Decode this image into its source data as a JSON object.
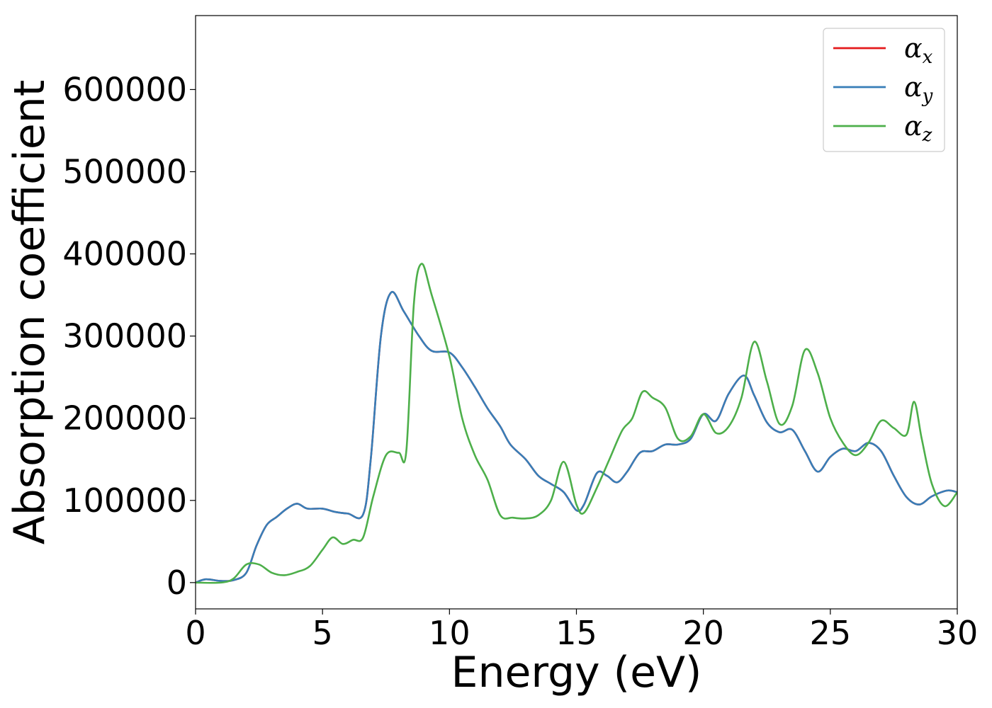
{
  "chart_data": {
    "type": "line",
    "xlabel": "Energy (eV)",
    "ylabel": "Absorption coefficient",
    "xlim": [
      0,
      30
    ],
    "ylim": [
      -32000,
      690000
    ],
    "xticks": [
      0,
      5,
      10,
      15,
      20,
      25,
      30
    ],
    "yticks": [
      0,
      100000,
      200000,
      300000,
      400000,
      500000,
      600000
    ],
    "grid": false,
    "legend_position": "top-right",
    "series": [
      {
        "name": "α_x",
        "label_main": "α",
        "label_sub": "x",
        "color": "#e41a1c",
        "x": [
          0,
          0.4,
          1.0,
          1.5,
          2.0,
          2.4,
          2.8,
          3.2,
          3.6,
          4.0,
          4.4,
          5.0,
          5.5,
          6.0,
          6.6,
          6.9,
          7.3,
          7.7,
          8.2,
          8.8,
          9.3,
          10.0,
          10.5,
          11.0,
          11.5,
          12.0,
          12.4,
          13.0,
          13.5,
          14.0,
          14.5,
          15.0,
          15.3,
          15.8,
          16.2,
          16.6,
          17.0,
          17.5,
          18.0,
          18.5,
          19.0,
          19.5,
          20.0,
          20.5,
          21.0,
          21.6,
          22.0,
          22.5,
          23.0,
          23.5,
          24.0,
          24.5,
          25.0,
          25.5,
          26.0,
          26.5,
          27.0,
          27.5,
          28.0,
          28.5,
          29.0,
          29.6,
          30.0
        ],
        "y": [
          0,
          4000,
          2000,
          3000,
          12000,
          45000,
          70000,
          80000,
          90000,
          96000,
          90000,
          90000,
          86000,
          84000,
          83000,
          150000,
          300000,
          353000,
          330000,
          300000,
          282000,
          280000,
          262000,
          238000,
          212000,
          190000,
          168000,
          150000,
          130000,
          120000,
          110000,
          88000,
          95000,
          133000,
          130000,
          122000,
          135000,
          158000,
          160000,
          168000,
          168000,
          175000,
          205000,
          197000,
          230000,
          252000,
          228000,
          195000,
          183000,
          186000,
          160000,
          135000,
          153000,
          163000,
          160000,
          170000,
          160000,
          130000,
          104000,
          95000,
          105000,
          112000,
          110000
        ]
      },
      {
        "name": "α_y",
        "label_main": "α",
        "label_sub": "y",
        "color": "#377eb8",
        "x": [
          0,
          0.4,
          1.0,
          1.5,
          2.0,
          2.4,
          2.8,
          3.2,
          3.6,
          4.0,
          4.4,
          5.0,
          5.5,
          6.0,
          6.6,
          6.9,
          7.3,
          7.7,
          8.2,
          8.8,
          9.3,
          10.0,
          10.5,
          11.0,
          11.5,
          12.0,
          12.4,
          13.0,
          13.5,
          14.0,
          14.5,
          15.0,
          15.3,
          15.8,
          16.2,
          16.6,
          17.0,
          17.5,
          18.0,
          18.5,
          19.0,
          19.5,
          20.0,
          20.5,
          21.0,
          21.6,
          22.0,
          22.5,
          23.0,
          23.5,
          24.0,
          24.5,
          25.0,
          25.5,
          26.0,
          26.5,
          27.0,
          27.5,
          28.0,
          28.5,
          29.0,
          29.6,
          30.0
        ],
        "y": [
          0,
          4000,
          2000,
          3000,
          12000,
          45000,
          70000,
          80000,
          90000,
          96000,
          90000,
          90000,
          86000,
          84000,
          83000,
          150000,
          300000,
          353000,
          330000,
          300000,
          282000,
          280000,
          262000,
          238000,
          212000,
          190000,
          168000,
          150000,
          130000,
          120000,
          110000,
          88000,
          95000,
          133000,
          130000,
          122000,
          135000,
          158000,
          160000,
          168000,
          168000,
          175000,
          205000,
          197000,
          230000,
          252000,
          228000,
          195000,
          183000,
          186000,
          160000,
          135000,
          153000,
          163000,
          160000,
          170000,
          160000,
          130000,
          104000,
          95000,
          105000,
          112000,
          110000
        ]
      },
      {
        "name": "α_z",
        "label_main": "α",
        "label_sub": "z",
        "color": "#4daf4a",
        "x": [
          0,
          1.0,
          1.5,
          2.0,
          2.5,
          3.0,
          3.5,
          4.0,
          4.5,
          5.0,
          5.4,
          5.8,
          6.2,
          6.6,
          7.0,
          7.5,
          8.0,
          8.3,
          8.6,
          8.9,
          9.3,
          10.0,
          10.5,
          11.0,
          11.5,
          12.0,
          12.5,
          13.0,
          13.5,
          14.0,
          14.5,
          15.0,
          15.3,
          15.8,
          16.3,
          16.8,
          17.2,
          17.6,
          18.0,
          18.5,
          19.0,
          19.5,
          20.0,
          20.5,
          21.0,
          21.5,
          22.0,
          22.5,
          23.0,
          23.5,
          24.0,
          24.5,
          25.0,
          25.5,
          26.0,
          26.5,
          27.0,
          27.5,
          28.0,
          28.3,
          28.6,
          29.0,
          29.5,
          30.0
        ],
        "y": [
          0,
          0,
          5000,
          22000,
          22000,
          12000,
          9000,
          13000,
          20000,
          40000,
          55000,
          47000,
          52000,
          55000,
          105000,
          155000,
          158000,
          160000,
          340000,
          388000,
          350000,
          275000,
          200000,
          155000,
          125000,
          82000,
          79000,
          78000,
          82000,
          100000,
          147000,
          95000,
          85000,
          115000,
          150000,
          185000,
          200000,
          232000,
          225000,
          213000,
          175000,
          178000,
          205000,
          182000,
          190000,
          225000,
          293000,
          245000,
          193000,
          215000,
          283000,
          255000,
          200000,
          170000,
          155000,
          170000,
          197000,
          188000,
          180000,
          220000,
          175000,
          120000,
          93000,
          110000
        ]
      }
    ]
  }
}
